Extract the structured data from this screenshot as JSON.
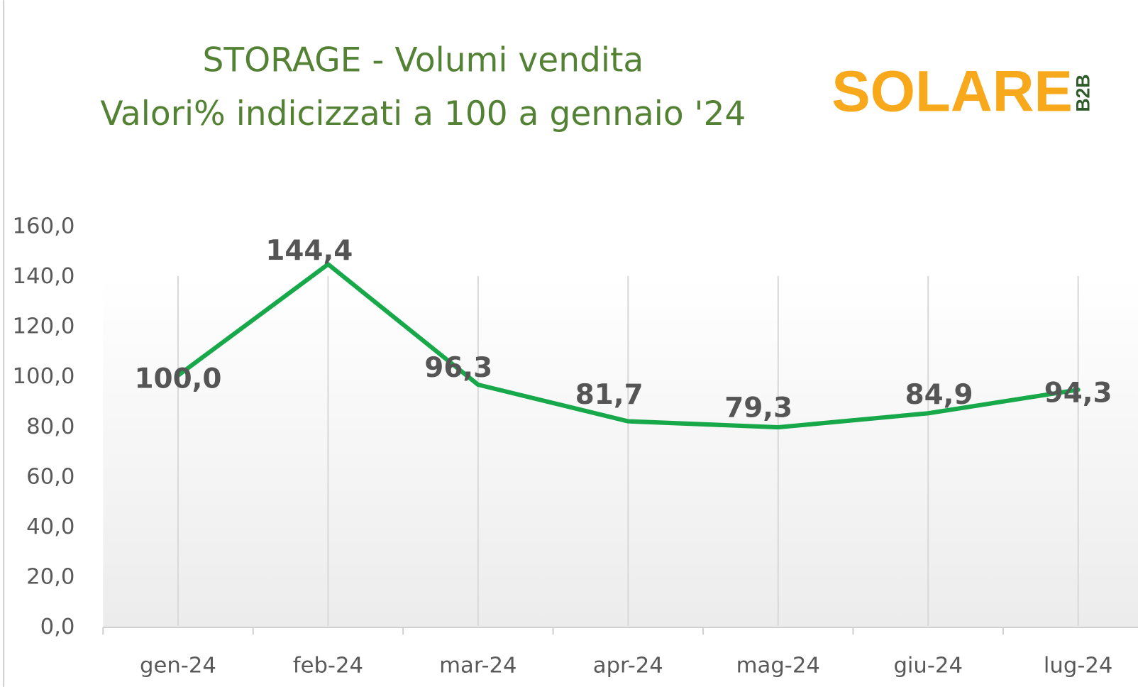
{
  "chart_data": {
    "type": "line",
    "title": "STORAGE - Volumi vendita",
    "subtitle": "Valori% indicizzati a 100 a gennaio '24",
    "logo": {
      "name": "SOLARE",
      "suffix": "B2B"
    },
    "categories": [
      "gen-24",
      "feb-24",
      "mar-24",
      "apr-24",
      "mag-24",
      "giu-24",
      "lug-24"
    ],
    "series": [
      {
        "name": "STORAGE",
        "color": "#17a84a",
        "values": [
          100.0,
          144.4,
          96.3,
          81.7,
          79.3,
          84.9,
          94.3
        ],
        "value_labels": [
          "100,0",
          "144,4",
          "96,3",
          "81,7",
          "79,3",
          "84,9",
          "94,3"
        ]
      }
    ],
    "ylim": [
      0,
      160
    ],
    "yticks": [
      {
        "value": 0,
        "label": "0,0"
      },
      {
        "value": 20,
        "label": "20,0"
      },
      {
        "value": 40,
        "label": "40,0"
      },
      {
        "value": 60,
        "label": "60,0"
      },
      {
        "value": 80,
        "label": "80,0"
      },
      {
        "value": 100,
        "label": "100,0"
      },
      {
        "value": 120,
        "label": "120,0"
      },
      {
        "value": 140,
        "label": "140,0"
      },
      {
        "value": 160,
        "label": "160,0"
      }
    ],
    "xgrid": true
  }
}
